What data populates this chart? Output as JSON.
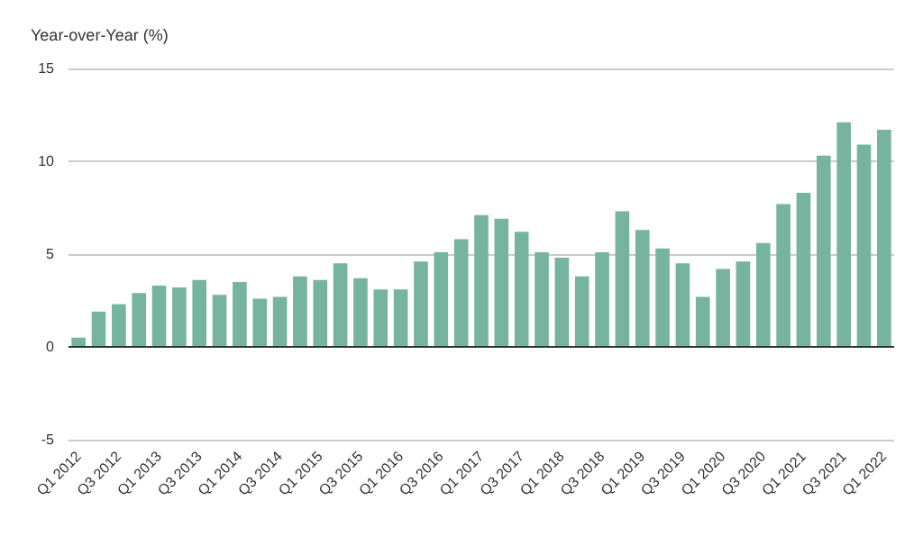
{
  "chart_data": {
    "type": "bar",
    "ylabel": "Year-over-Year (%)",
    "categories": [
      "Q1 2012",
      null,
      "Q3 2012",
      null,
      "Q1 2013",
      null,
      "Q3 2013",
      null,
      "Q1 2014",
      null,
      "Q3 2014",
      null,
      "Q1 2015",
      null,
      "Q3 2015",
      null,
      "Q1 2016",
      null,
      "Q3 2016",
      null,
      "Q1 2017",
      null,
      "Q3 2017",
      null,
      "Q1 2018",
      null,
      "Q3 2018",
      null,
      "Q1 2019",
      null,
      "Q3 2019",
      null,
      "Q1 2020",
      null,
      "Q3 2020",
      null,
      "Q1 2021",
      null,
      "Q3 2021",
      null,
      "Q1 2022"
    ],
    "values": [
      0.5,
      1.9,
      2.3,
      2.9,
      3.3,
      3.2,
      3.6,
      2.8,
      3.5,
      2.6,
      2.7,
      3.8,
      3.6,
      4.5,
      3.7,
      3.1,
      3.1,
      4.6,
      5.1,
      5.8,
      7.1,
      6.9,
      6.2,
      5.1,
      4.8,
      3.8,
      5.1,
      7.3,
      6.3,
      5.3,
      4.5,
      2.7,
      4.2,
      4.6,
      5.6,
      7.7,
      8.3,
      10.3,
      12.1,
      10.9,
      11.7
    ],
    "color": "#76b4a0",
    "ylim": [
      -5,
      15
    ],
    "yticks": [
      -5,
      0,
      5,
      10,
      15
    ],
    "grid": "y"
  }
}
